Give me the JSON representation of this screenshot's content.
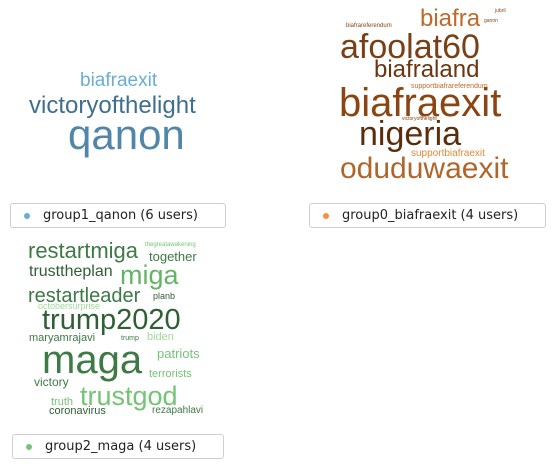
{
  "clouds": [
    {
      "id": "group1_qanon",
      "words": [
        {
          "text": "biafraexit",
          "color": "#6aaed6"
        },
        {
          "text": "victoryofthelight",
          "color": "#3e6f8e"
        },
        {
          "text": "qanon",
          "color": "#5186a8"
        }
      ],
      "legend": {
        "label": "group1_qanon (6 users)",
        "dot_color": "#6aaed6"
      }
    },
    {
      "id": "group0_biafraexit",
      "words": [
        {
          "text": "jubril",
          "color": "#8b4513"
        },
        {
          "text": "biafrareferendum",
          "color": "#8b4513"
        },
        {
          "text": "ganon",
          "color": "#8b4513"
        },
        {
          "text": "biafra",
          "color": "#c0692a"
        },
        {
          "text": "afoolat60",
          "color": "#7a3f16"
        },
        {
          "text": "biafraland",
          "color": "#6b3510"
        },
        {
          "text": "supportbiafrareferendum",
          "color": "#c0692a"
        },
        {
          "text": "biafraexit",
          "color": "#8b4513"
        },
        {
          "text": "victoryofthelight",
          "color": "#8b4513"
        },
        {
          "text": "nigeria",
          "color": "#5a2d0c"
        },
        {
          "text": "supportbiafraexit",
          "color": "#e08a3c"
        },
        {
          "text": "oduduwaexit",
          "color": "#b0652b"
        }
      ],
      "legend": {
        "label": "group0_biafraexit (4 users)",
        "dot_color": "#fd8d3c"
      }
    },
    {
      "id": "group2_maga",
      "words": [
        {
          "text": "restartmiga",
          "color": "#3d7a45"
        },
        {
          "text": "thegreatawakening",
          "color": "#74c476"
        },
        {
          "text": "together",
          "color": "#3d7a45"
        },
        {
          "text": "trusttheplan",
          "color": "#2f5f35"
        },
        {
          "text": "miga",
          "color": "#62b566"
        },
        {
          "text": "restartleader",
          "color": "#3d7a45"
        },
        {
          "text": "planb",
          "color": "#2f5f35"
        },
        {
          "text": "octobersurprise",
          "color": "#a1d99b"
        },
        {
          "text": "trump2020",
          "color": "#2f5f35"
        },
        {
          "text": "maryamrajavi",
          "color": "#3d7a45"
        },
        {
          "text": "trump",
          "color": "#3d7a45"
        },
        {
          "text": "biden",
          "color": "#a1d99b"
        },
        {
          "text": "maga",
          "color": "#3d7a45"
        },
        {
          "text": "patriots",
          "color": "#74c476"
        },
        {
          "text": "terrorists",
          "color": "#74c476"
        },
        {
          "text": "victory",
          "color": "#3d7a45"
        },
        {
          "text": "trustgod",
          "color": "#74c476"
        },
        {
          "text": "truth",
          "color": "#74c476"
        },
        {
          "text": "coronavirus",
          "color": "#2f5f35"
        },
        {
          "text": "rezapahlavi",
          "color": "#3d7a45"
        }
      ],
      "legend": {
        "label": "group2_maga (4 users)",
        "dot_color": "#74c476"
      }
    }
  ]
}
